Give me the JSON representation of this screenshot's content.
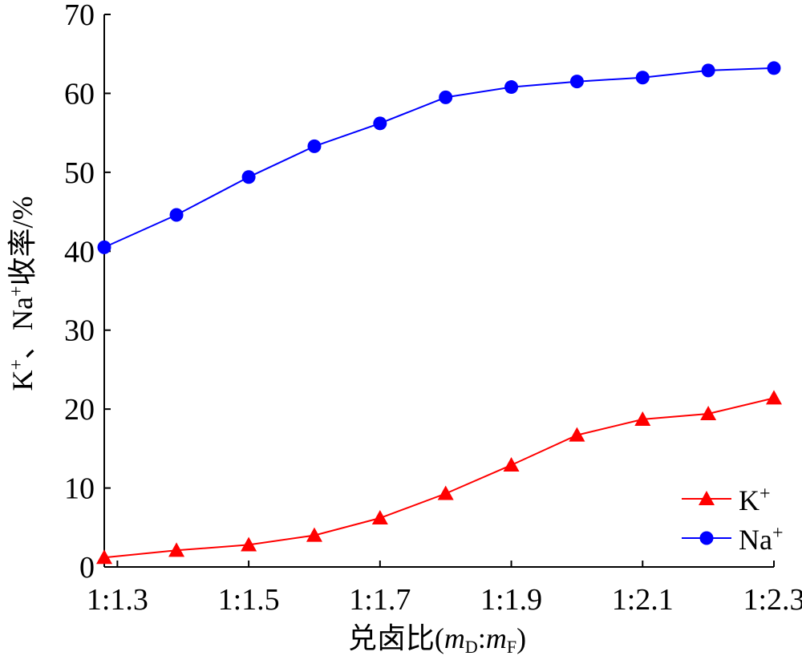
{
  "chart_data": {
    "type": "line",
    "x": [
      1.28,
      1.39,
      1.5,
      1.6,
      1.7,
      1.8,
      1.9,
      2.0,
      2.1,
      2.2,
      2.3
    ],
    "series": [
      {
        "name": "K",
        "superscript": "+",
        "color": "#ff0000",
        "marker": "triangle",
        "values": [
          1.2,
          2.1,
          2.8,
          4.0,
          6.2,
          9.3,
          12.9,
          16.7,
          18.7,
          19.4,
          21.4
        ]
      },
      {
        "name": "Na",
        "superscript": "+",
        "color": "#0000ff",
        "marker": "circle",
        "values": [
          40.5,
          44.6,
          49.4,
          53.3,
          56.2,
          59.5,
          60.8,
          61.5,
          62.0,
          62.9,
          63.2
        ]
      }
    ],
    "xticks": [
      1.3,
      1.5,
      1.7,
      1.9,
      2.1,
      2.3
    ],
    "xtick_labels": [
      "1:1.3",
      "1:1.5",
      "1:1.7",
      "1:1.9",
      "1:2.1",
      "1:2.3"
    ],
    "yticks": [
      0,
      10,
      20,
      30,
      40,
      50,
      60,
      70
    ],
    "xlim": [
      1.28,
      2.3
    ],
    "ylim": [
      0,
      70
    ],
    "xlabel": {
      "prefix": "兑卤比(",
      "var1": "m",
      "sub1": "D",
      "sep": ":",
      "var2": "m",
      "sub2": "F",
      "suffix": ")"
    },
    "ylabel": {
      "k": "K",
      "k_sup": "+",
      "sep": "、",
      "na": "Na",
      "na_sup": "+",
      "rest": "收率/%"
    },
    "legend": "bottom-right",
    "grid": false
  }
}
